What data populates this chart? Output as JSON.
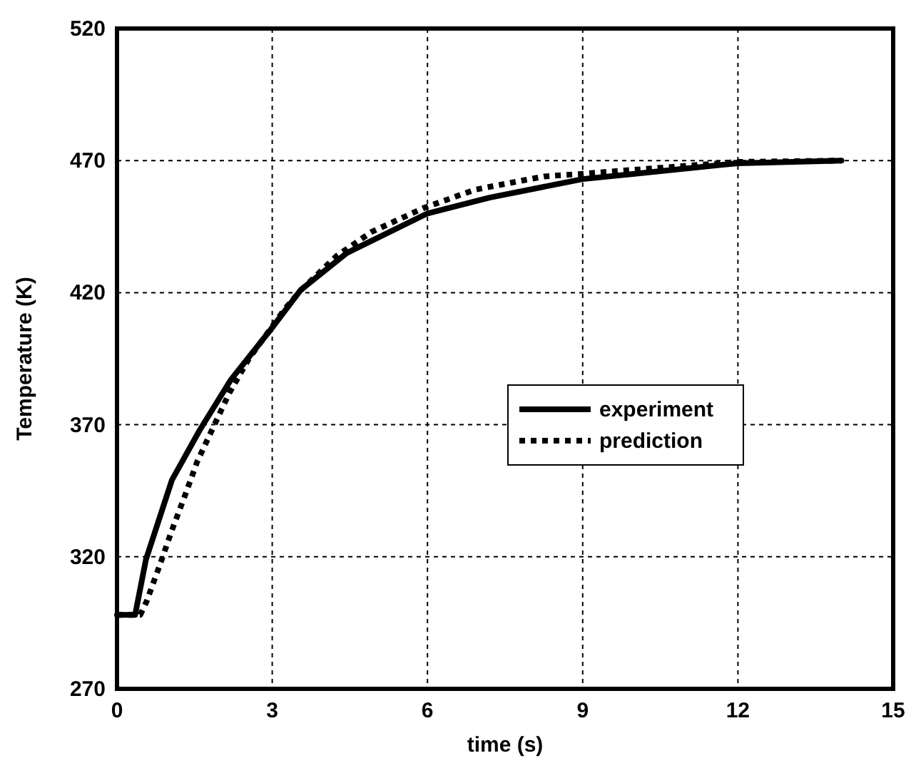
{
  "chart_data": {
    "type": "line",
    "xlabel": "time (s)",
    "ylabel": "Temperature (K)",
    "xlim": [
      0,
      15
    ],
    "xticks": [
      0,
      3,
      6,
      9,
      12,
      15
    ],
    "ylim": [
      270,
      520
    ],
    "yticks": [
      270,
      320,
      370,
      420,
      470,
      520
    ],
    "grid": true,
    "legend": "right",
    "series": [
      {
        "name": "experiment",
        "color": "#000000",
        "line_style": "solid",
        "x": [
          0,
          0.35,
          0.56,
          1.06,
          1.6,
          2.2,
          2.97,
          3.55,
          4.44,
          6,
          7.2,
          9,
          10,
          12,
          14
        ],
        "values": [
          298,
          298,
          319,
          349,
          368,
          387,
          406,
          421,
          435,
          450,
          456,
          463,
          465,
          469,
          470
        ]
      },
      {
        "name": "prediction",
        "color": "#000000",
        "line_style": "dotted",
        "x": [
          0,
          0.45,
          0.57,
          0.83,
          1.06,
          1.31,
          1.55,
          1.86,
          2.17,
          2.55,
          3.25,
          3.56,
          4.25,
          4.92,
          5.92,
          6.92,
          8.25,
          9,
          9.64,
          12,
          14
        ],
        "values": [
          298,
          298,
          303,
          317,
          330,
          343,
          356,
          369,
          382,
          395,
          414,
          421,
          434,
          443,
          452,
          459,
          464,
          465,
          466,
          469.5,
          470
        ]
      }
    ]
  }
}
